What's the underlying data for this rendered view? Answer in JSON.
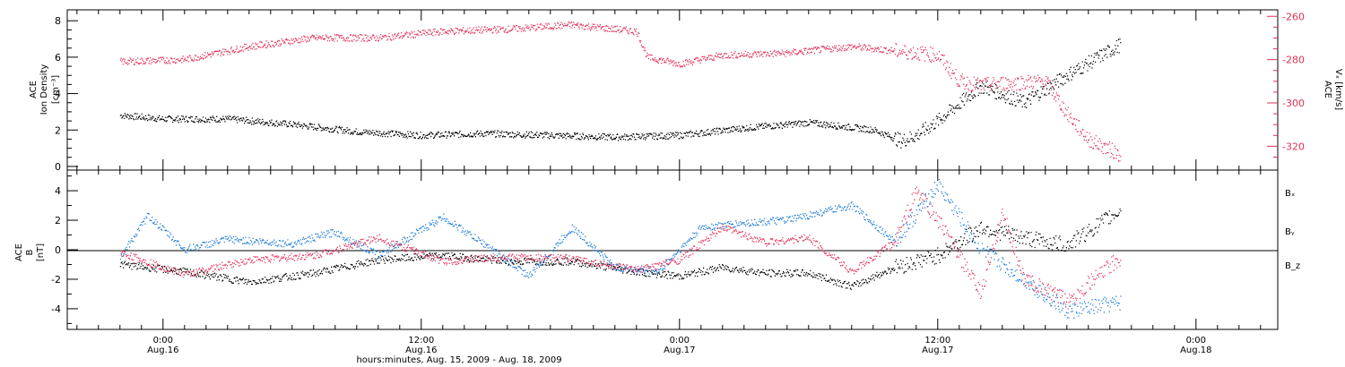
{
  "chart_data": [
    {
      "type": "scatter",
      "panel": "top",
      "left_axis": {
        "label_lines": [
          "ACE",
          "Ion Density",
          "[cm⁻³]"
        ],
        "ylim": [
          -0.2,
          8.6
        ],
        "ticks": [
          0,
          2,
          4,
          6,
          8
        ],
        "tick_labels": [
          "0",
          "2",
          "4",
          "6",
          "8"
        ]
      },
      "right_axis": {
        "label_lines": [
          "ACE",
          "Vₓ [km/s]"
        ],
        "ylim": [
          -331,
          -257
        ],
        "ticks": [
          -260,
          -280,
          -300,
          -320
        ],
        "tick_labels": [
          "-260",
          "-280",
          "-300",
          "-320"
        ]
      },
      "series": [
        {
          "key": "ion_density",
          "axis": "left",
          "color": "#000000",
          "x": [
            0,
            2,
            5,
            8,
            11,
            14,
            17,
            20,
            23,
            26,
            29,
            32,
            35,
            36.3,
            37,
            38,
            40,
            42,
            44,
            46.5
          ],
          "y": [
            2.8,
            2.6,
            2.6,
            2.3,
            1.9,
            1.7,
            1.8,
            1.7,
            1.6,
            1.7,
            2.1,
            2.4,
            2.0,
            1.4,
            1.7,
            2.5,
            4.4,
            3.5,
            5.0,
            6.7
          ]
        },
        {
          "key": "vx",
          "axis": "right",
          "color": "#e0305a",
          "x": [
            0,
            3,
            6,
            9,
            12,
            15,
            18,
            21,
            24,
            24.5,
            26,
            28,
            31,
            34,
            36,
            38,
            39,
            40,
            41,
            43,
            44,
            45,
            46.5
          ],
          "y": [
            -281,
            -280,
            -274,
            -270,
            -270,
            -267,
            -266,
            -264,
            -267,
            -279,
            -282,
            -278,
            -277,
            -274,
            -276,
            -278,
            -290,
            -292,
            -291,
            -290,
            -305,
            -317,
            -324
          ]
        }
      ]
    },
    {
      "type": "scatter",
      "panel": "bottom",
      "axis": {
        "label_lines": [
          "ACE",
          "B",
          "[nT]"
        ],
        "ylim": [
          -5.4,
          5.4
        ],
        "ticks": [
          -4,
          -2,
          0,
          2,
          4
        ],
        "tick_labels": [
          "-4",
          "-2",
          "0",
          "2",
          "4"
        ]
      },
      "legend": {
        "position": "right",
        "entries": [
          "Bₓ",
          "Bᵧ",
          "B_z"
        ]
      },
      "series": [
        {
          "key": "bx",
          "name": "Bₓ",
          "color": "#000000",
          "x": [
            0,
            3,
            6,
            9,
            12,
            15,
            18,
            21,
            24,
            26,
            28,
            30,
            32,
            34,
            36,
            38,
            40,
            42,
            44,
            46.5
          ],
          "y": [
            -1.0,
            -1.5,
            -2.2,
            -1.6,
            -0.7,
            -0.4,
            -0.8,
            -0.8,
            -1.5,
            -1.8,
            -1.2,
            -1.6,
            -1.6,
            -2.5,
            -1.2,
            -0.4,
            1.5,
            0.8,
            0.3,
            2.7
          ]
        },
        {
          "key": "by",
          "name": "Bᵧ",
          "color": "#1a7ad8",
          "x": [
            0,
            1.3,
            3,
            5,
            8,
            10,
            12,
            15,
            17,
            19,
            21,
            23,
            25,
            27,
            29,
            31,
            34,
            36,
            38,
            40,
            42,
            44,
            46.5
          ],
          "y": [
            -0.5,
            2.3,
            0.0,
            0.7,
            0.4,
            1.2,
            -0.4,
            2.2,
            0.3,
            -1.8,
            1.5,
            -1.2,
            -1.5,
            1.5,
            1.8,
            2.0,
            3.0,
            0.5,
            4.4,
            0.0,
            -2.0,
            -4.2,
            -3.6
          ]
        },
        {
          "key": "bz",
          "name": "B_z",
          "color": "#e0305a",
          "x": [
            0,
            3,
            6,
            9,
            12,
            15,
            18,
            21,
            24,
            26,
            28,
            30,
            32,
            34,
            36,
            37,
            38,
            40,
            41,
            42,
            44,
            46.5
          ],
          "y": [
            -0.2,
            -1.7,
            -0.7,
            -0.4,
            0.8,
            -0.8,
            -0.5,
            -0.6,
            -1.4,
            -0.7,
            1.5,
            0.5,
            0.8,
            -1.5,
            0.5,
            4.0,
            2.0,
            -3.0,
            2.5,
            -2.0,
            -3.5,
            -0.5
          ]
        }
      ]
    }
  ],
  "x_axis": {
    "title": "hours:minutes, Aug. 15, 2009 - Aug. 18, 2009",
    "tick_labels": [
      {
        "hour": 2,
        "time": "0:00",
        "date": "Aug.16"
      },
      {
        "hour": 14,
        "time": "12:00",
        "date": "Aug.16"
      },
      {
        "hour": 26,
        "time": "0:00",
        "date": "Aug.17"
      },
      {
        "hour": 38,
        "time": "12:00",
        "date": "Aug.17"
      },
      {
        "hour": 50,
        "time": "0:00",
        "date": "Aug.18"
      }
    ]
  }
}
